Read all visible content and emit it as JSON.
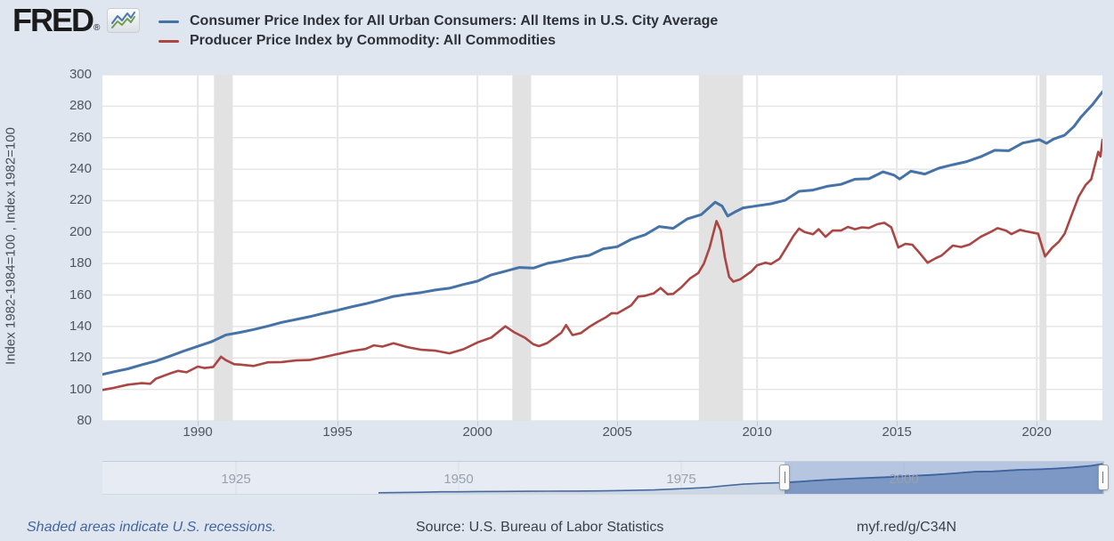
{
  "header": {
    "logo_text": "FRED",
    "registered_mark": "®",
    "legend": [
      {
        "label": "Consumer Price Index for All Urban Consumers: All Items in U.S. City Average",
        "color": "#4572a7"
      },
      {
        "label": "Producer Price Index by Commodity: All Commodities",
        "color": "#aa4643"
      }
    ]
  },
  "chart_data": {
    "type": "line",
    "title": "",
    "xlabel": "",
    "ylabel": "Index 1982-1984=100 , Index 1982=100",
    "x_range": [
      1986.59,
      2022.35
    ],
    "y_range": [
      80,
      300
    ],
    "y_ticks": [
      80,
      100,
      120,
      140,
      160,
      180,
      200,
      220,
      240,
      260,
      280,
      300
    ],
    "x_ticks": [
      1990,
      1995,
      2000,
      2005,
      2010,
      2015,
      2020
    ],
    "grid": true,
    "plot_background": "#ffffff",
    "gridline_color": "#e6e6e6",
    "recession_band_color": "#e2e2e2",
    "recession_bands": [
      [
        1990.58,
        1991.25
      ],
      [
        2001.25,
        2001.92
      ],
      [
        2007.92,
        2009.5
      ],
      [
        2020.1,
        2020.35
      ]
    ],
    "series": [
      {
        "name": "Consumer Price Index for All Urban Consumers: All Items in U.S. City Average",
        "color": "#4572a7",
        "width": 3,
        "points": [
          [
            1986.6,
            109.6
          ],
          [
            1987,
            111.2
          ],
          [
            1987.5,
            113.1
          ],
          [
            1988,
            115.7
          ],
          [
            1988.5,
            118.0
          ],
          [
            1989,
            121.1
          ],
          [
            1989.5,
            124.4
          ],
          [
            1990,
            127.4
          ],
          [
            1990.5,
            130.4
          ],
          [
            1991,
            134.6
          ],
          [
            1991.5,
            136.2
          ],
          [
            1992,
            138.1
          ],
          [
            1992.5,
            140.2
          ],
          [
            1993,
            142.6
          ],
          [
            1993.5,
            144.4
          ],
          [
            1994,
            146.2
          ],
          [
            1994.5,
            148.4
          ],
          [
            1995,
            150.3
          ],
          [
            1995.5,
            152.5
          ],
          [
            1996,
            154.4
          ],
          [
            1996.5,
            156.7
          ],
          [
            1997,
            159.1
          ],
          [
            1997.5,
            160.5
          ],
          [
            1998,
            161.6
          ],
          [
            1998.5,
            163.2
          ],
          [
            1999,
            164.3
          ],
          [
            1999.5,
            166.7
          ],
          [
            2000,
            168.8
          ],
          [
            2000.5,
            172.8
          ],
          [
            2001,
            175.1
          ],
          [
            2001.5,
            177.5
          ],
          [
            2002,
            177.1
          ],
          [
            2002.5,
            180.1
          ],
          [
            2003,
            181.7
          ],
          [
            2003.5,
            183.9
          ],
          [
            2004,
            185.2
          ],
          [
            2004.5,
            189.4
          ],
          [
            2005,
            190.7
          ],
          [
            2005.5,
            195.4
          ],
          [
            2006,
            198.3
          ],
          [
            2006.5,
            203.5
          ],
          [
            2007,
            202.4
          ],
          [
            2007.5,
            208.3
          ],
          [
            2008,
            211.1
          ],
          [
            2008.5,
            219.0
          ],
          [
            2008.75,
            216.5
          ],
          [
            2008.95,
            210.2
          ],
          [
            2009.2,
            212.7
          ],
          [
            2009.5,
            215.4
          ],
          [
            2010,
            216.7
          ],
          [
            2010.5,
            218.0
          ],
          [
            2011,
            220.2
          ],
          [
            2011.5,
            225.9
          ],
          [
            2012,
            226.7
          ],
          [
            2012.5,
            229.1
          ],
          [
            2013,
            230.3
          ],
          [
            2013.5,
            233.6
          ],
          [
            2014,
            233.9
          ],
          [
            2014.5,
            238.3
          ],
          [
            2014.9,
            236.2
          ],
          [
            2015.1,
            233.7
          ],
          [
            2015.5,
            238.7
          ],
          [
            2016,
            236.9
          ],
          [
            2016.5,
            240.6
          ],
          [
            2017,
            242.8
          ],
          [
            2017.5,
            244.8
          ],
          [
            2018,
            247.9
          ],
          [
            2018.5,
            252.0
          ],
          [
            2019,
            251.7
          ],
          [
            2019.5,
            256.6
          ],
          [
            2020.1,
            258.7
          ],
          [
            2020.35,
            256.4
          ],
          [
            2020.6,
            259.1
          ],
          [
            2021,
            261.6
          ],
          [
            2021.33,
            267.1
          ],
          [
            2021.58,
            273.0
          ],
          [
            2021.83,
            277.9
          ],
          [
            2022,
            281.1
          ],
          [
            2022.17,
            285.0
          ],
          [
            2022.35,
            289.1
          ]
        ]
      },
      {
        "name": "Producer Price Index by Commodity: All Commodities",
        "color": "#aa4643",
        "width": 2.6,
        "points": [
          [
            1986.6,
            99.7
          ],
          [
            1987,
            101.0
          ],
          [
            1987.5,
            103.0
          ],
          [
            1988,
            104.0
          ],
          [
            1988.3,
            103.6
          ],
          [
            1988.5,
            106.8
          ],
          [
            1989,
            110.1
          ],
          [
            1989.3,
            111.8
          ],
          [
            1989.6,
            110.9
          ],
          [
            1990,
            114.5
          ],
          [
            1990.25,
            113.6
          ],
          [
            1990.55,
            114.3
          ],
          [
            1990.83,
            120.8
          ],
          [
            1991,
            118.6
          ],
          [
            1991.3,
            116.0
          ],
          [
            1991.5,
            115.8
          ],
          [
            1992,
            114.9
          ],
          [
            1992.5,
            117.2
          ],
          [
            1993,
            117.4
          ],
          [
            1993.5,
            118.4
          ],
          [
            1994,
            118.7
          ],
          [
            1994.5,
            120.5
          ],
          [
            1995,
            122.5
          ],
          [
            1995.5,
            124.4
          ],
          [
            1996,
            125.7
          ],
          [
            1996.3,
            128.0
          ],
          [
            1996.6,
            127.2
          ],
          [
            1997,
            129.4
          ],
          [
            1997.5,
            126.9
          ],
          [
            1998,
            125.2
          ],
          [
            1998.5,
            124.6
          ],
          [
            1999,
            122.9
          ],
          [
            1999.5,
            125.5
          ],
          [
            2000,
            129.8
          ],
          [
            2000.5,
            133.0
          ],
          [
            2001,
            140.1
          ],
          [
            2001.3,
            136.5
          ],
          [
            2001.7,
            132.8
          ],
          [
            2002,
            128.7
          ],
          [
            2002.2,
            127.5
          ],
          [
            2002.5,
            129.5
          ],
          [
            2003,
            136.0
          ],
          [
            2003.17,
            140.9
          ],
          [
            2003.4,
            134.5
          ],
          [
            2003.7,
            135.8
          ],
          [
            2004,
            139.7
          ],
          [
            2004.3,
            143.0
          ],
          [
            2004.6,
            145.9
          ],
          [
            2004.8,
            148.5
          ],
          [
            2005,
            148.3
          ],
          [
            2005.5,
            153.4
          ],
          [
            2005.75,
            159.0
          ],
          [
            2006,
            159.5
          ],
          [
            2006.3,
            161.0
          ],
          [
            2006.55,
            164.5
          ],
          [
            2006.8,
            160.5
          ],
          [
            2007,
            160.7
          ],
          [
            2007.3,
            165.0
          ],
          [
            2007.6,
            170.5
          ],
          [
            2007.9,
            174.0
          ],
          [
            2008.1,
            180.0
          ],
          [
            2008.3,
            190.0
          ],
          [
            2008.55,
            207.0
          ],
          [
            2008.7,
            201.0
          ],
          [
            2008.85,
            184.0
          ],
          [
            2009.0,
            171.5
          ],
          [
            2009.15,
            168.5
          ],
          [
            2009.4,
            170.0
          ],
          [
            2009.6,
            172.5
          ],
          [
            2009.8,
            175.0
          ],
          [
            2010,
            178.9
          ],
          [
            2010.3,
            180.5
          ],
          [
            2010.5,
            179.7
          ],
          [
            2010.8,
            183.0
          ],
          [
            2011,
            188.7
          ],
          [
            2011.3,
            197.5
          ],
          [
            2011.5,
            202.2
          ],
          [
            2011.7,
            200.0
          ],
          [
            2012,
            198.6
          ],
          [
            2012.2,
            201.8
          ],
          [
            2012.45,
            197.0
          ],
          [
            2012.7,
            201.0
          ],
          [
            2013,
            201.0
          ],
          [
            2013.25,
            203.3
          ],
          [
            2013.5,
            201.8
          ],
          [
            2013.75,
            203.0
          ],
          [
            2014,
            202.6
          ],
          [
            2014.3,
            205.0
          ],
          [
            2014.55,
            205.9
          ],
          [
            2014.8,
            203.0
          ],
          [
            2015.05,
            190.2
          ],
          [
            2015.3,
            192.5
          ],
          [
            2015.55,
            192.0
          ],
          [
            2015.8,
            187.0
          ],
          [
            2016.1,
            180.5
          ],
          [
            2016.4,
            183.5
          ],
          [
            2016.6,
            185.1
          ],
          [
            2017,
            191.4
          ],
          [
            2017.3,
            190.5
          ],
          [
            2017.6,
            192.1
          ],
          [
            2018,
            197.0
          ],
          [
            2018.4,
            200.5
          ],
          [
            2018.6,
            202.5
          ],
          [
            2018.9,
            201.0
          ],
          [
            2019.1,
            198.7
          ],
          [
            2019.4,
            201.4
          ],
          [
            2019.6,
            200.5
          ],
          [
            2019.9,
            199.5
          ],
          [
            2020.05,
            199.0
          ],
          [
            2020.3,
            184.5
          ],
          [
            2020.55,
            190.0
          ],
          [
            2020.8,
            194.0
          ],
          [
            2021,
            199.0
          ],
          [
            2021.25,
            211.0
          ],
          [
            2021.5,
            222.5
          ],
          [
            2021.75,
            230.0
          ],
          [
            2021.95,
            233.5
          ],
          [
            2022.05,
            240.5
          ],
          [
            2022.2,
            251.0
          ],
          [
            2022.28,
            248.0
          ],
          [
            2022.35,
            258.6
          ]
        ]
      }
    ]
  },
  "slider": {
    "x_range": [
      1910,
      2022.5
    ],
    "labels": [
      1925,
      1950,
      1975,
      2000
    ],
    "selection": [
      1986.6,
      2022.35
    ],
    "colors": {
      "line": "#48699c",
      "area_light": "#ccd7e6",
      "area_dark": "#7d98c5",
      "selection_overlay": "rgba(134,158,204,0.5)",
      "year_line": "#d7dde6"
    },
    "overview_series": {
      "name": "CPI overview 1941-2022",
      "points": [
        [
          1941,
          14.7
        ],
        [
          1944,
          17.6
        ],
        [
          1946,
          19.5
        ],
        [
          1948,
          24.1
        ],
        [
          1950,
          24.1
        ],
        [
          1952,
          26.5
        ],
        [
          1955,
          26.8
        ],
        [
          1958,
          28.9
        ],
        [
          1960,
          29.6
        ],
        [
          1963,
          30.6
        ],
        [
          1966,
          32.4
        ],
        [
          1969,
          36.7
        ],
        [
          1972,
          41.8
        ],
        [
          1974,
          49.3
        ],
        [
          1976,
          56.9
        ],
        [
          1978,
          65.2
        ],
        [
          1980,
          82.4
        ],
        [
          1982,
          96.5
        ],
        [
          1984,
          103.9
        ],
        [
          1986,
          109.6
        ],
        [
          1988,
          118.3
        ],
        [
          1990,
          130.7
        ],
        [
          1992,
          140.3
        ],
        [
          1995,
          152.4
        ],
        [
          1998,
          163.0
        ],
        [
          2000,
          172.2
        ],
        [
          2003,
          184.0
        ],
        [
          2005,
          195.3
        ],
        [
          2008,
          215.3
        ],
        [
          2010,
          218.1
        ],
        [
          2013,
          233.0
        ],
        [
          2015,
          237.0
        ],
        [
          2017,
          245.1
        ],
        [
          2019,
          255.7
        ],
        [
          2021,
          271.0
        ],
        [
          2022.35,
          289.1
        ]
      ]
    }
  },
  "footer": {
    "recession_note": "Shaded areas indicate U.S. recessions.",
    "source": "Source: U.S. Bureau of Labor Statistics",
    "short_url": "myf.red/g/C34N"
  }
}
